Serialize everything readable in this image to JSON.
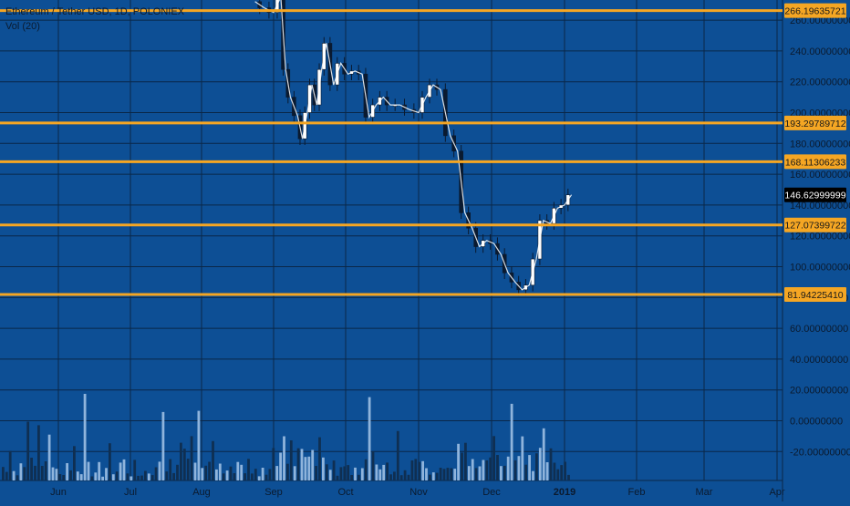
{
  "chart_data": {
    "type": "candlestick",
    "title": "Ethereum / Tether USD, 1D, POLONIEX",
    "volume_label": "Vol (20)",
    "x_ticks": [
      "Jun",
      "Jul",
      "Aug",
      "Sep",
      "Oct",
      "Nov",
      "Dec",
      "2019",
      "Feb",
      "Mar",
      "Apr"
    ],
    "y_ticks": [
      260,
      240,
      220,
      200,
      180,
      160,
      140,
      120,
      100,
      80,
      60,
      40,
      20,
      0,
      -20
    ],
    "ylim": [
      -38,
      271
    ],
    "horizontal_levels": [
      {
        "value": 266.19635721,
        "label": "266.19635721"
      },
      {
        "value": 193.29789712,
        "label": "193.29789712"
      },
      {
        "value": 168.11306233,
        "label": "168.11306233"
      },
      {
        "value": 127.07399722,
        "label": "127.07399722"
      },
      {
        "value": 81.9422541,
        "label": "81.94225410"
      }
    ],
    "last_price": {
      "value": 146.62999999,
      "label": "146.62999999"
    },
    "close_series": [
      {
        "date": "2018-08-24",
        "close": 272
      },
      {
        "date": "2018-08-28",
        "close": 268
      },
      {
        "date": "2018-09-01",
        "close": 265
      },
      {
        "date": "2018-09-04",
        "close": 275
      },
      {
        "date": "2018-09-06",
        "close": 228
      },
      {
        "date": "2018-09-08",
        "close": 210
      },
      {
        "date": "2018-09-11",
        "close": 198
      },
      {
        "date": "2018-09-13",
        "close": 183
      },
      {
        "date": "2018-09-15",
        "close": 200
      },
      {
        "date": "2018-09-17",
        "close": 218
      },
      {
        "date": "2018-09-19",
        "close": 205
      },
      {
        "date": "2018-09-21",
        "close": 228
      },
      {
        "date": "2018-09-23",
        "close": 245
      },
      {
        "date": "2018-09-26",
        "close": 218
      },
      {
        "date": "2018-09-29",
        "close": 232
      },
      {
        "date": "2018-10-02",
        "close": 225
      },
      {
        "date": "2018-10-05",
        "close": 227
      },
      {
        "date": "2018-10-08",
        "close": 225
      },
      {
        "date": "2018-10-11",
        "close": 197
      },
      {
        "date": "2018-10-14",
        "close": 205
      },
      {
        "date": "2018-10-17",
        "close": 210
      },
      {
        "date": "2018-10-20",
        "close": 205
      },
      {
        "date": "2018-10-24",
        "close": 205
      },
      {
        "date": "2018-10-28",
        "close": 202
      },
      {
        "date": "2018-11-01",
        "close": 200
      },
      {
        "date": "2018-11-04",
        "close": 210
      },
      {
        "date": "2018-11-07",
        "close": 218
      },
      {
        "date": "2018-11-10",
        "close": 215
      },
      {
        "date": "2018-11-14",
        "close": 185
      },
      {
        "date": "2018-11-17",
        "close": 175
      },
      {
        "date": "2018-11-20",
        "close": 135
      },
      {
        "date": "2018-11-23",
        "close": 125
      },
      {
        "date": "2018-11-26",
        "close": 113
      },
      {
        "date": "2018-11-29",
        "close": 117
      },
      {
        "date": "2018-12-02",
        "close": 115
      },
      {
        "date": "2018-12-05",
        "close": 108
      },
      {
        "date": "2018-12-08",
        "close": 96
      },
      {
        "date": "2018-12-11",
        "close": 90
      },
      {
        "date": "2018-12-14",
        "close": 85
      },
      {
        "date": "2018-12-17",
        "close": 88
      },
      {
        "date": "2018-12-20",
        "close": 105
      },
      {
        "date": "2018-12-23",
        "close": 130
      },
      {
        "date": "2018-12-26",
        "close": 128
      },
      {
        "date": "2018-12-29",
        "close": 138
      },
      {
        "date": "2019-01-01",
        "close": 140
      },
      {
        "date": "2019-01-04",
        "close": 146.63
      }
    ],
    "colors": {
      "background": "#0d4f95",
      "grid": "#0a2748",
      "level_line": "#f5a623",
      "candle": "#ffffff",
      "volume_light": "#8fb4dc",
      "volume_dark": "#0f2f52",
      "axis_text": "#0b1a2e",
      "last_price_bg": "#000000"
    }
  }
}
